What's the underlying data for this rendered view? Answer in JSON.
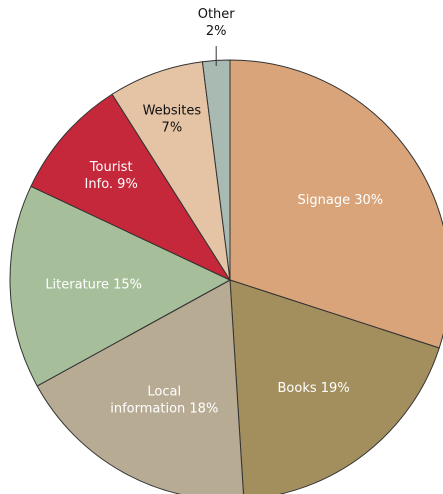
{
  "chart_data": {
    "type": "pie",
    "labels": [
      [
        "Signage 30%"
      ],
      [
        "Books 19%"
      ],
      [
        "Local",
        "information 18%"
      ],
      [
        "Literature 15%"
      ],
      [
        "Tourist",
        "Info. 9%"
      ],
      [
        "Websites",
        "7%"
      ],
      [
        "Other",
        "2%"
      ]
    ],
    "values": [
      30,
      19,
      18,
      15,
      9,
      7,
      2
    ],
    "colors": [
      "#d9a47a",
      "#a38f5e",
      "#b8ab94",
      "#a6bf9a",
      "#c5283a",
      "#e5c4a6",
      "#a9bab3"
    ]
  }
}
